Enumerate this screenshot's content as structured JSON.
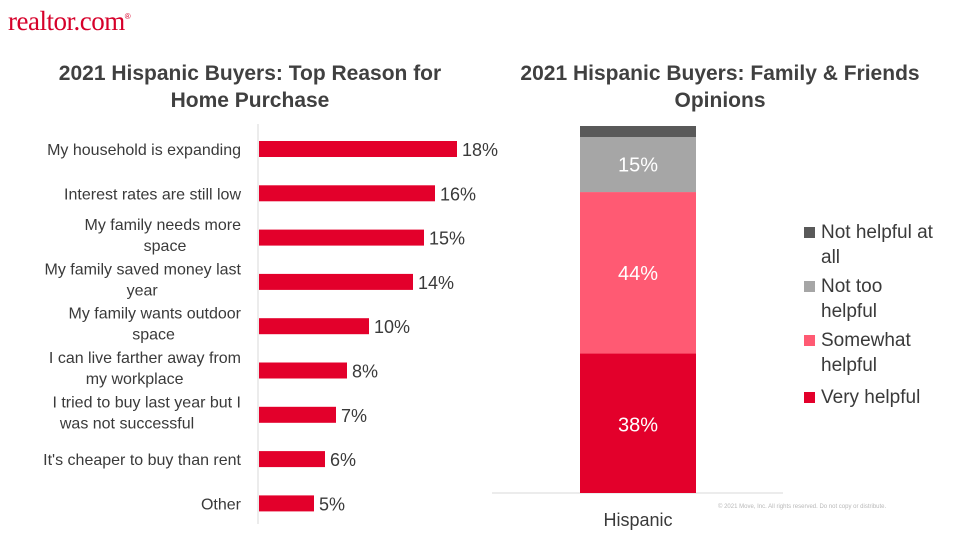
{
  "logo": {
    "text": "realtor.com",
    "mark": "®"
  },
  "footer": "© 2021 Move, Inc. All rights reserved. Do not copy or distribute.",
  "colors": {
    "bar": "#e3002b",
    "very_helpful": "#e3002b",
    "somewhat_helpful": "#ff5a73",
    "not_too_helpful": "#a6a6a6",
    "not_helpful": "#595959"
  },
  "chart_data": [
    {
      "type": "bar",
      "orientation": "horizontal",
      "title": "2021 Hispanic Buyers: Top Reason for Home Purchase",
      "categories": [
        "My household is expanding",
        "Interest rates are still low",
        "My family needs more space",
        "My family saved money last year",
        "My family wants outdoor space",
        "I can live farther away from my workplace",
        "I tried to buy last year but I was not successful",
        "It's cheaper to buy than rent",
        "Other"
      ],
      "category_lines": [
        [
          "My household is expanding"
        ],
        [
          "Interest rates are still low"
        ],
        [
          "My family needs more",
          "space"
        ],
        [
          "My family saved money last",
          "year"
        ],
        [
          "My family wants outdoor",
          "space"
        ],
        [
          "I can live farther away from",
          "my workplace"
        ],
        [
          "I tried to buy last year but I",
          "was not successful"
        ],
        [
          "It's cheaper to buy than rent"
        ],
        [
          "Other"
        ]
      ],
      "values": [
        18,
        16,
        15,
        14,
        10,
        8,
        7,
        6,
        5
      ],
      "value_labels": [
        "18%",
        "16%",
        "15%",
        "14%",
        "10%",
        "8%",
        "7%",
        "6%",
        "5%"
      ],
      "xlim": [
        0,
        20
      ],
      "grid": false
    },
    {
      "type": "bar",
      "stacked": true,
      "title": "2021 Hispanic Buyers: Family & Friends Opinions",
      "categories": [
        "Hispanic"
      ],
      "series": [
        {
          "name": "Very helpful",
          "legend_lines": [
            "Very helpful"
          ],
          "values": [
            38
          ],
          "label": "38%"
        },
        {
          "name": "Somewhat helpful",
          "legend_lines": [
            "Somewhat",
            "helpful"
          ],
          "values": [
            44
          ],
          "label": "44%"
        },
        {
          "name": "Not too helpful",
          "legend_lines": [
            "Not too",
            "helpful"
          ],
          "values": [
            15
          ],
          "label": "15%"
        },
        {
          "name": "Not helpful at all",
          "legend_lines": [
            "Not helpful at",
            "all"
          ],
          "values": [
            3
          ],
          "label": ""
        }
      ],
      "ylim": [
        0,
        100
      ],
      "legend": "right",
      "grid": false
    }
  ]
}
